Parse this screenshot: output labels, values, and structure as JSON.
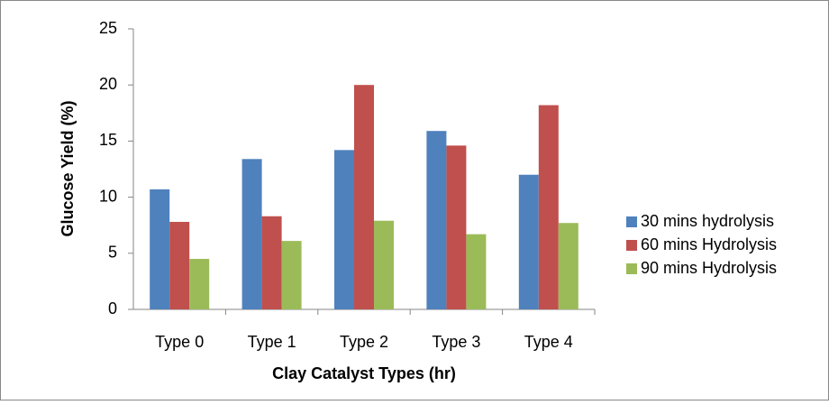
{
  "chart_data": {
    "type": "bar",
    "x_label": "Clay Catalyst Types (hr)",
    "y_label": "Glucose Yield (%)",
    "categories": [
      "Type 0",
      "Type 1",
      "Type 2",
      "Type 3",
      "Type 4"
    ],
    "series": [
      {
        "name": "30 mins hydrolysis",
        "color": "#4f81bd",
        "values": [
          10.7,
          13.4,
          14.2,
          15.9,
          12.0
        ]
      },
      {
        "name": "60 mins Hydrolysis",
        "color": "#c0504d",
        "values": [
          7.8,
          8.3,
          20.0,
          14.6,
          18.2
        ]
      },
      {
        "name": "90 mins Hydrolysis",
        "color": "#9bbb59",
        "values": [
          4.5,
          6.1,
          7.9,
          6.7,
          7.7
        ]
      }
    ],
    "ylim": [
      0,
      25
    ],
    "yticks": [
      0,
      5,
      10,
      15,
      20,
      25
    ],
    "grid": false,
    "legend": "right"
  }
}
